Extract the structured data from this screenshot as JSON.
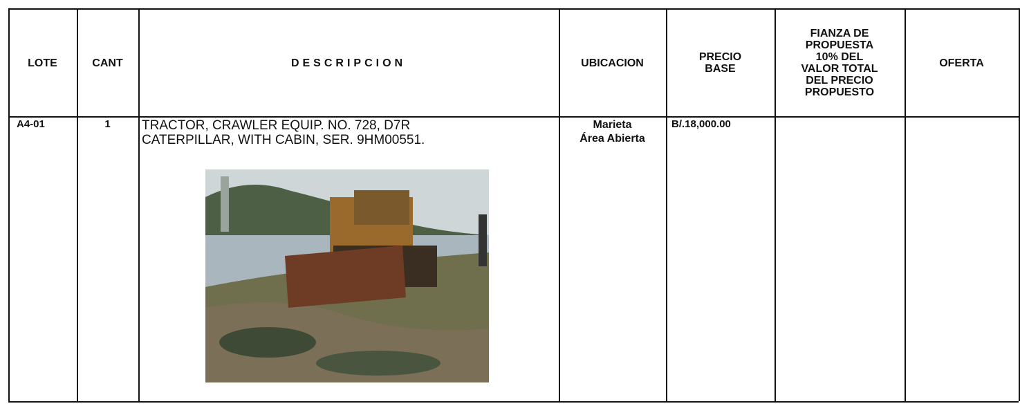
{
  "table": {
    "headers": [
      [
        "LOTE"
      ],
      [
        "CANT"
      ],
      [
        "DESCRIPCION"
      ],
      [
        "UBICACION"
      ],
      [
        "PRECIO",
        "BASE"
      ],
      [
        "FIANZA DE",
        "PROPUESTA",
        "10% DEL",
        "VALOR TOTAL",
        "DEL PRECIO",
        "PROPUESTO"
      ],
      [
        "OFERTA"
      ]
    ],
    "rows": [
      [
        [
          "A4-01"
        ],
        [
          "1"
        ],
        [
          "TRACTOR, CRAWLER EQUIP. NO. 728, D7R",
          "CATERPILLAR, WITH CABIN, SER. 9HM00551."
        ],
        [
          "Marieta",
          "Área Abierta"
        ],
        [
          "B/.18,000.00"
        ]
      ]
    ]
  }
}
